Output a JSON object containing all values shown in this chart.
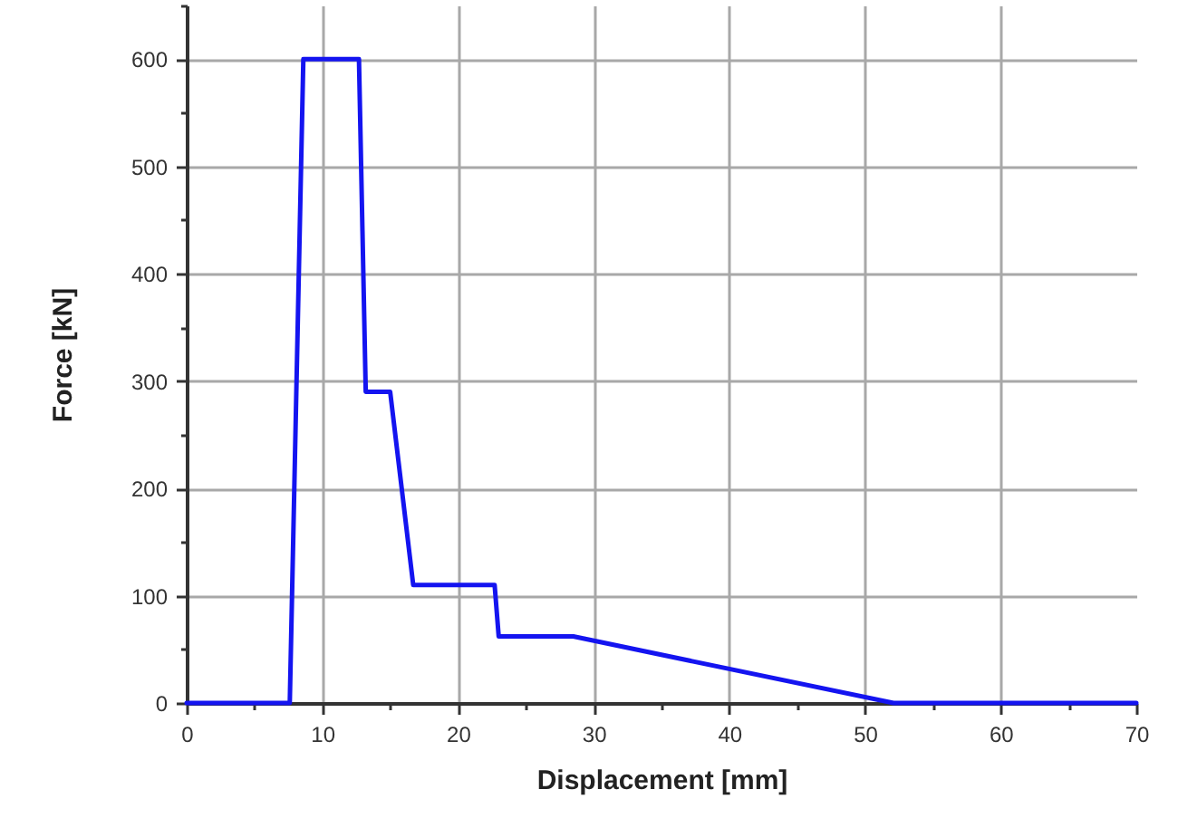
{
  "chart_data": {
    "type": "line",
    "xlabel": "Displacement [mm]",
    "ylabel": "Force [kN]",
    "x": [
      0,
      7.6,
      8.6,
      12.7,
      13.2,
      15.0,
      16.7,
      22.7,
      23.0,
      28.5,
      52.1,
      70
    ],
    "series": [
      {
        "color": "#1414f0",
        "values": [
          0,
          0,
          600,
          600,
          290,
          290,
          110,
          110,
          62,
          62,
          0,
          0
        ]
      }
    ],
    "xlim": [
      0,
      70
    ],
    "xticks": [
      0,
      {
        "value": 5,
        "label": null
      },
      10,
      {
        "value": 15,
        "label": null
      },
      20,
      {
        "value": 25,
        "label": null
      },
      30,
      {
        "value": 35,
        "label": null
      },
      40,
      {
        "value": 45,
        "label": null
      },
      50,
      {
        "value": 55,
        "label": null
      },
      60,
      {
        "value": 65,
        "label": null
      },
      70
    ],
    "ylim": [
      0,
      650
    ],
    "yticks": [
      0,
      {
        "value": 50,
        "label": null
      },
      100,
      {
        "value": 150,
        "label": null
      },
      200,
      {
        "value": 250,
        "label": null
      },
      300,
      {
        "value": 350,
        "label": null
      },
      400,
      {
        "value": 450,
        "label": null
      },
      500,
      {
        "value": 550,
        "label": null
      },
      600,
      {
        "value": 650,
        "label": null
      }
    ],
    "grid": true,
    "line_style": "solid"
  }
}
